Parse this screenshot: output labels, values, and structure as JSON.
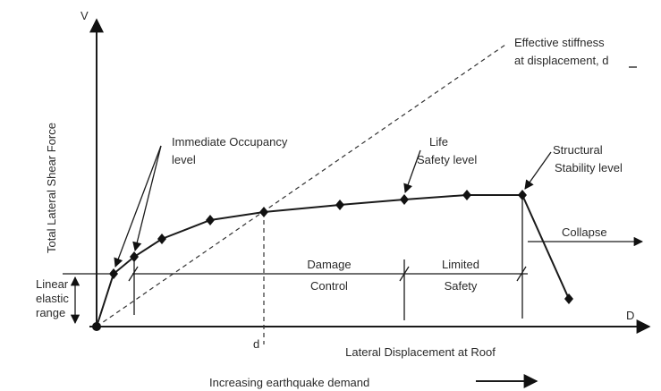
{
  "axes": {
    "y_label": "V",
    "x_label": "D",
    "y_title": "Total Lateral Shear Force",
    "x_title": "Lateral Displacement at Roof",
    "d_marker": "d"
  },
  "demand": "Increasing earthquake demand",
  "annotations": {
    "effective_stiffness": [
      "Effective stiffness",
      "at displacement, d"
    ],
    "immediate_occupancy": [
      "Immediate Occupancy",
      "level"
    ],
    "life_safety": [
      "Life",
      "Safety level"
    ],
    "structural_stability": [
      "Structural",
      "Stability level"
    ],
    "collapse": "Collapse",
    "linear_elastic": [
      "Linear",
      "elastic",
      "range"
    ],
    "damage_control": [
      "Damage",
      "Control"
    ],
    "limited_safety": [
      "Limited",
      "Safety"
    ]
  }
}
